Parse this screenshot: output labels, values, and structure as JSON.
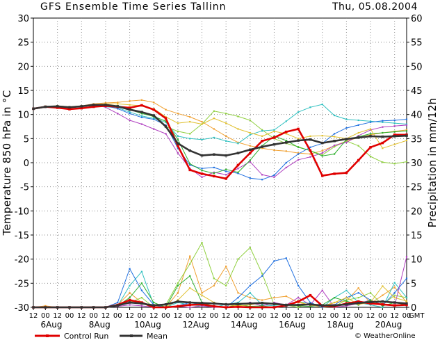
{
  "header": {
    "title": "GFS Ensemble Time Series Tallinn",
    "date": "Thu, 05.08.2004"
  },
  "footer": {
    "legend_control": "Control Run",
    "legend_mean": "Mean",
    "credit": "© WeatherOnline",
    "gmt_label": "GMT"
  },
  "chart_data": {
    "type": "line",
    "title": "GFS Ensemble Time Series Tallinn",
    "subtitle": "Thu, 05.08.2004",
    "ylabel_left": "Temperature 850 hPa in °C",
    "ylabel_right": "Precipitation in mm/12h",
    "ylim_left": [
      -30,
      30
    ],
    "ylim_right": [
      0,
      60
    ],
    "grid": true,
    "legend_placement": "bottom-left",
    "time_ticks": [
      "12",
      "00",
      "12",
      "00",
      "12",
      "00",
      "12",
      "00",
      "12",
      "00",
      "12",
      "00",
      "12",
      "00",
      "12",
      "00",
      "12",
      "00",
      "12",
      "00",
      "12",
      "00",
      "12",
      "00",
      "12",
      "00",
      "12",
      "00",
      "12",
      "00",
      "12",
      "00"
    ],
    "x": [
      0,
      1,
      2,
      3,
      4,
      5,
      6,
      7,
      8,
      9,
      10,
      11,
      12,
      13,
      14,
      15,
      16,
      17,
      18,
      19,
      20,
      21,
      22,
      23,
      24,
      25,
      26,
      27,
      28,
      29,
      30,
      31
    ],
    "date_labels": [
      {
        "label": "6Aug",
        "at": 1.5
      },
      {
        "label": "8Aug",
        "at": 5.5
      },
      {
        "label": "10Aug",
        "at": 9.5
      },
      {
        "label": "12Aug",
        "at": 13.5
      },
      {
        "label": "14Aug",
        "at": 17.5
      },
      {
        "label": "16Aug",
        "at": 21.5
      },
      {
        "label": "18Aug",
        "at": 25.5
      },
      {
        "label": "20Aug",
        "at": 29.5
      }
    ],
    "yticks_left": [
      30,
      25,
      20,
      15,
      10,
      5,
      0,
      -5,
      -10,
      -15,
      -20,
      -25,
      -30
    ],
    "yticks_right": [
      60,
      55,
      50,
      45,
      40,
      35,
      30,
      25,
      20,
      15,
      10,
      5,
      0
    ],
    "temperature_series": [
      {
        "name": "Control Run",
        "color": "#e00000",
        "highlight": true,
        "values": [
          11.2,
          11.6,
          11.4,
          11.1,
          11.3,
          11.6,
          11.8,
          11.6,
          11.4,
          11.9,
          11,
          9.2,
          3.5,
          -1.5,
          -2.3,
          -2.8,
          -3.3,
          -0.5,
          2,
          4.5,
          5.2,
          6.4,
          7,
          2.5,
          -2.7,
          -2.3,
          -2.1,
          0.5,
          3.2,
          4.1,
          5.8,
          5.8
        ]
      },
      {
        "name": "Mean",
        "color": "#333333",
        "highlight": true,
        "values": [
          11.2,
          11.6,
          11.7,
          11.5,
          11.7,
          12,
          12,
          11.7,
          11,
          10.5,
          9.8,
          7.5,
          4,
          2.5,
          1.5,
          1.7,
          1.5,
          2,
          2.7,
          3.3,
          3.8,
          4.2,
          4.6,
          4.8,
          4.1,
          4.5,
          4.9,
          5.2,
          5.5,
          5.4,
          5.5,
          5.6
        ]
      },
      {
        "name": "",
        "color": "#f0a030",
        "highlight": false,
        "values": [
          11.2,
          11.6,
          11.8,
          11.6,
          11.8,
          12.2,
          12.4,
          12.5,
          12.8,
          13,
          12.5,
          11,
          10.2,
          9.5,
          8.5,
          7,
          5.5,
          4.2,
          3.5,
          3,
          2.6,
          2.4,
          2,
          1.8,
          2.5,
          3.5,
          4.5,
          5.2,
          5.8,
          6.2,
          6.5,
          6.8
        ]
      },
      {
        "name": "",
        "color": "#90d040",
        "highlight": false,
        "values": [
          11.2,
          11.7,
          11.8,
          11.6,
          11.8,
          12,
          12,
          11.8,
          11.2,
          10.5,
          9.5,
          7.5,
          6.5,
          6,
          8,
          10.7,
          10.2,
          9.6,
          8.8,
          6.8,
          5,
          4,
          3.3,
          2.5,
          1.6,
          3.3,
          4.5,
          3.5,
          1.3,
          0.1,
          -0.2,
          0.2
        ]
      },
      {
        "name": "",
        "color": "#30c0c0",
        "highlight": false,
        "values": [
          11.2,
          11.5,
          11.6,
          11.5,
          11.7,
          11.8,
          11.6,
          11.4,
          10.5,
          9.7,
          9.2,
          8.4,
          5.5,
          5,
          4.8,
          5.2,
          4.5,
          4,
          5.8,
          6.6,
          6.8,
          8.6,
          10.5,
          11.5,
          12.1,
          9.8,
          9,
          8.8,
          8.6,
          8.4,
          8.2,
          8
        ]
      },
      {
        "name": "",
        "color": "#2070e0",
        "highlight": false,
        "values": [
          11.2,
          11.6,
          11.7,
          11.5,
          11.8,
          12,
          11.8,
          11.2,
          10.2,
          9.4,
          9,
          7.8,
          3,
          -0.5,
          -1.2,
          -1,
          -1.8,
          -2.2,
          -3.2,
          -3.5,
          -2.6,
          0,
          1.8,
          3.2,
          4,
          6,
          7.2,
          7.8,
          8.4,
          8.7,
          8.8,
          9
        ]
      },
      {
        "name": "",
        "color": "#b040c0",
        "highlight": false,
        "values": [
          11.2,
          11.6,
          11.7,
          11.5,
          11.7,
          12,
          11.5,
          10.2,
          8.8,
          8,
          7,
          6,
          2,
          -1.2,
          -3,
          -2,
          -2.5,
          -1.2,
          0.2,
          -2.5,
          -3,
          -1,
          0.6,
          1.2,
          2,
          3.6,
          4.2,
          5.6,
          6.8,
          7.4,
          7.6,
          7.8
        ]
      },
      {
        "name": "",
        "color": "#30b030",
        "highlight": false,
        "values": [
          11.2,
          11.6,
          11.7,
          11.5,
          11.7,
          11.9,
          12,
          11.8,
          11,
          10.2,
          9.6,
          8.6,
          4.8,
          -0.2,
          -1.6,
          -2.2,
          -1.4,
          -2,
          0.5,
          3.5,
          5.5,
          4.6,
          3.2,
          2.5,
          1.4,
          1.8,
          4.8,
          5.4,
          6,
          6.2,
          6.4,
          6.6
        ]
      },
      {
        "name": "",
        "color": "#e0c030",
        "highlight": false,
        "values": [
          11.2,
          11.6,
          11.8,
          11.6,
          11.8,
          12.1,
          12.2,
          12.2,
          12,
          11.8,
          11.2,
          9.5,
          8.2,
          8.5,
          8,
          9.2,
          8.2,
          7,
          6.2,
          5.5,
          6.5,
          6,
          5,
          5.5,
          5.6,
          5.4,
          5,
          6.2,
          7,
          3,
          3.8,
          4.6
        ]
      }
    ],
    "precipitation_series": [
      {
        "name": "Control Run",
        "color": "#e00000",
        "highlight": true,
        "values": [
          0,
          0,
          0,
          0,
          0,
          0,
          0,
          0.5,
          1.5,
          1,
          0,
          0,
          0.2,
          0.5,
          0.6,
          0.2,
          0,
          0.1,
          0,
          0,
          0,
          0.4,
          1.2,
          2.5,
          0.3,
          0.2,
          0.8,
          1.2,
          0.8,
          0.6,
          0.4,
          0.5
        ]
      },
      {
        "name": "Mean",
        "color": "#333333",
        "highlight": true,
        "values": [
          0,
          0,
          0,
          0,
          0,
          0,
          0,
          0.4,
          1,
          0.8,
          0.4,
          0.6,
          1.2,
          1,
          0.9,
          0.8,
          0.6,
          0.7,
          0.8,
          0.9,
          0.7,
          0.5,
          0.5,
          0.6,
          0.4,
          0.4,
          0.6,
          0.9,
          1.1,
          1.2,
          1,
          0.8
        ]
      },
      {
        "name": "",
        "color": "#f0a030",
        "highlight": false,
        "values": [
          0,
          0.3,
          0,
          0,
          0,
          0,
          0,
          0.5,
          3,
          1,
          0,
          0,
          3,
          10.6,
          3,
          4.5,
          8.5,
          3,
          2,
          1.5,
          2,
          2.3,
          1,
          0.5,
          0,
          1,
          1.3,
          4,
          0.8,
          2.5,
          4.2,
          1
        ]
      },
      {
        "name": "",
        "color": "#90d040",
        "highlight": false,
        "values": [
          0,
          0,
          0,
          0,
          0,
          0,
          0,
          0.5,
          1,
          2,
          0,
          0.5,
          5,
          9,
          13.4,
          6,
          4.5,
          10,
          12.4,
          7,
          0.5,
          0.5,
          0,
          1,
          0,
          0.2,
          1.5,
          2,
          3,
          0.5,
          2.5,
          2
        ]
      },
      {
        "name": "",
        "color": "#30c0c0",
        "highlight": false,
        "values": [
          0,
          0,
          0,
          0,
          0,
          0,
          0,
          0.3,
          4.5,
          7.4,
          0.5,
          0,
          1,
          0.5,
          0.3,
          0,
          0.6,
          1,
          3,
          0.5,
          0.3,
          0.2,
          1.2,
          0.8,
          0,
          2,
          3.5,
          1,
          0.5,
          0,
          5.1,
          2
        ]
      },
      {
        "name": "",
        "color": "#2070e0",
        "highlight": false,
        "values": [
          0,
          0,
          0,
          0,
          0,
          0,
          0,
          1,
          8,
          3.5,
          0.5,
          0,
          0.3,
          1,
          0.5,
          0.2,
          0,
          2,
          4.5,
          6.5,
          9.6,
          10.2,
          4.5,
          1,
          0,
          0.5,
          2,
          3,
          1.5,
          0.4,
          3,
          6
        ]
      },
      {
        "name": "",
        "color": "#b040c0",
        "highlight": false,
        "values": [
          0,
          0,
          0,
          0,
          0,
          0,
          0,
          0.2,
          0.5,
          0.3,
          0,
          0,
          0.2,
          0,
          0.3,
          0,
          0,
          0.5,
          1,
          0.3,
          1,
          0.5,
          2,
          0.5,
          3.5,
          0,
          0.3,
          0.8,
          1.5,
          0.5,
          0.3,
          10.5
        ]
      },
      {
        "name": "",
        "color": "#30b030",
        "highlight": false,
        "values": [
          0,
          0,
          0,
          0,
          0,
          0,
          0,
          0.3,
          2,
          5,
          1,
          0,
          4.5,
          6.5,
          1,
          0.2,
          0,
          0.5,
          0.2,
          0.3,
          0,
          0.5,
          0.3,
          0.2,
          0.5,
          2,
          1.3,
          0.5,
          1.5,
          0.3,
          1,
          0.5
        ]
      },
      {
        "name": "",
        "color": "#e0c030",
        "highlight": false,
        "values": [
          0,
          0,
          0,
          0,
          0,
          0,
          0,
          0.5,
          1,
          0.8,
          0,
          0,
          1.5,
          4,
          2.5,
          1,
          0.5,
          0.3,
          0.5,
          1,
          0.8,
          0.5,
          1.2,
          0.4,
          0.3,
          1,
          2,
          0.6,
          1,
          4.4,
          2,
          1.3
        ]
      }
    ]
  }
}
